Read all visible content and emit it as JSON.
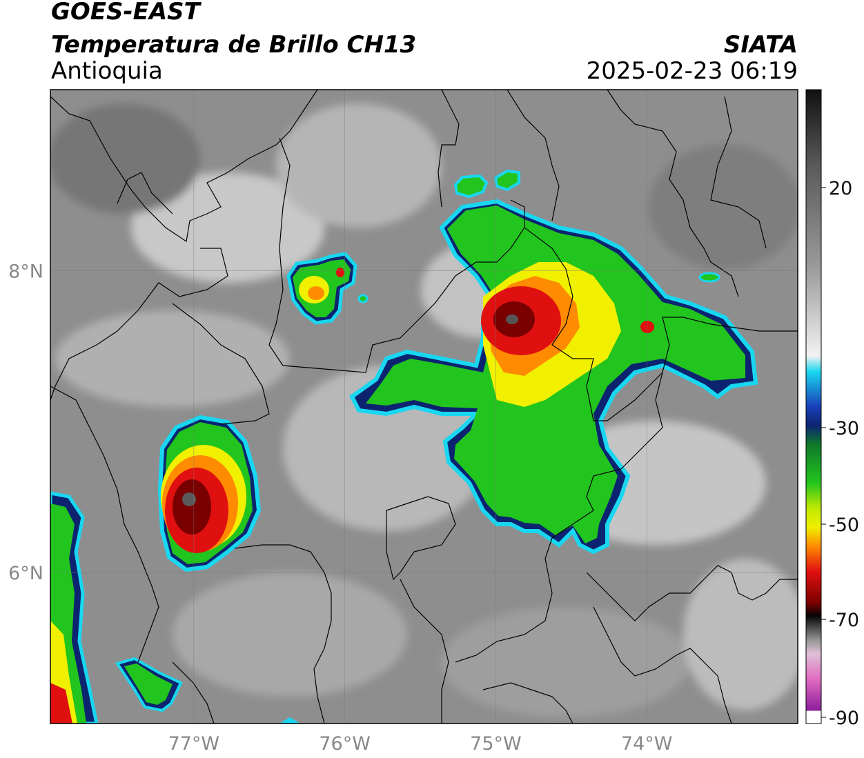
{
  "header": {
    "satellite": "GOES-EAST",
    "product": "Temperatura de Brillo CH13",
    "region": "Antioquia",
    "agency": "SIATA",
    "datetime": "2025-02-23 06:19"
  },
  "map": {
    "lon_range": [
      -77.95,
      -73.0
    ],
    "lat_range": [
      5.0,
      9.2
    ],
    "lon_ticks": [
      {
        "value": -77,
        "label": "77°W"
      },
      {
        "value": -76,
        "label": "76°W"
      },
      {
        "value": -75,
        "label": "75°W"
      },
      {
        "value": -74,
        "label": "74°W"
      }
    ],
    "lat_ticks": [
      {
        "value": 8,
        "label": "8°N"
      },
      {
        "value": 6,
        "label": "6°N"
      }
    ],
    "gridlines": true
  },
  "colorbar": {
    "range": [
      -90,
      40
    ],
    "ticks": [
      {
        "value": 20,
        "label": "20"
      },
      {
        "value": -30,
        "label": "-30"
      },
      {
        "value": -50,
        "label": "-50"
      },
      {
        "value": -70,
        "label": "-70"
      },
      {
        "value": -90,
        "label": "-90"
      }
    ],
    "colors": {
      "warm_black": "#111111",
      "gray_mid": "#8a8a8a",
      "white": "#f4f4f4",
      "cyan": "#19d7f0",
      "blue": "#1a3fb8",
      "navy": "#0c2470",
      "green_dark": "#0f7a2a",
      "green": "#22c41e",
      "yellow": "#f0f000",
      "orange": "#ff8c00",
      "red": "#e01010",
      "dark_red": "#7a0000",
      "cold_black": "#050505",
      "pink": "#e06cc0",
      "purple": "#8c1c9c"
    }
  }
}
